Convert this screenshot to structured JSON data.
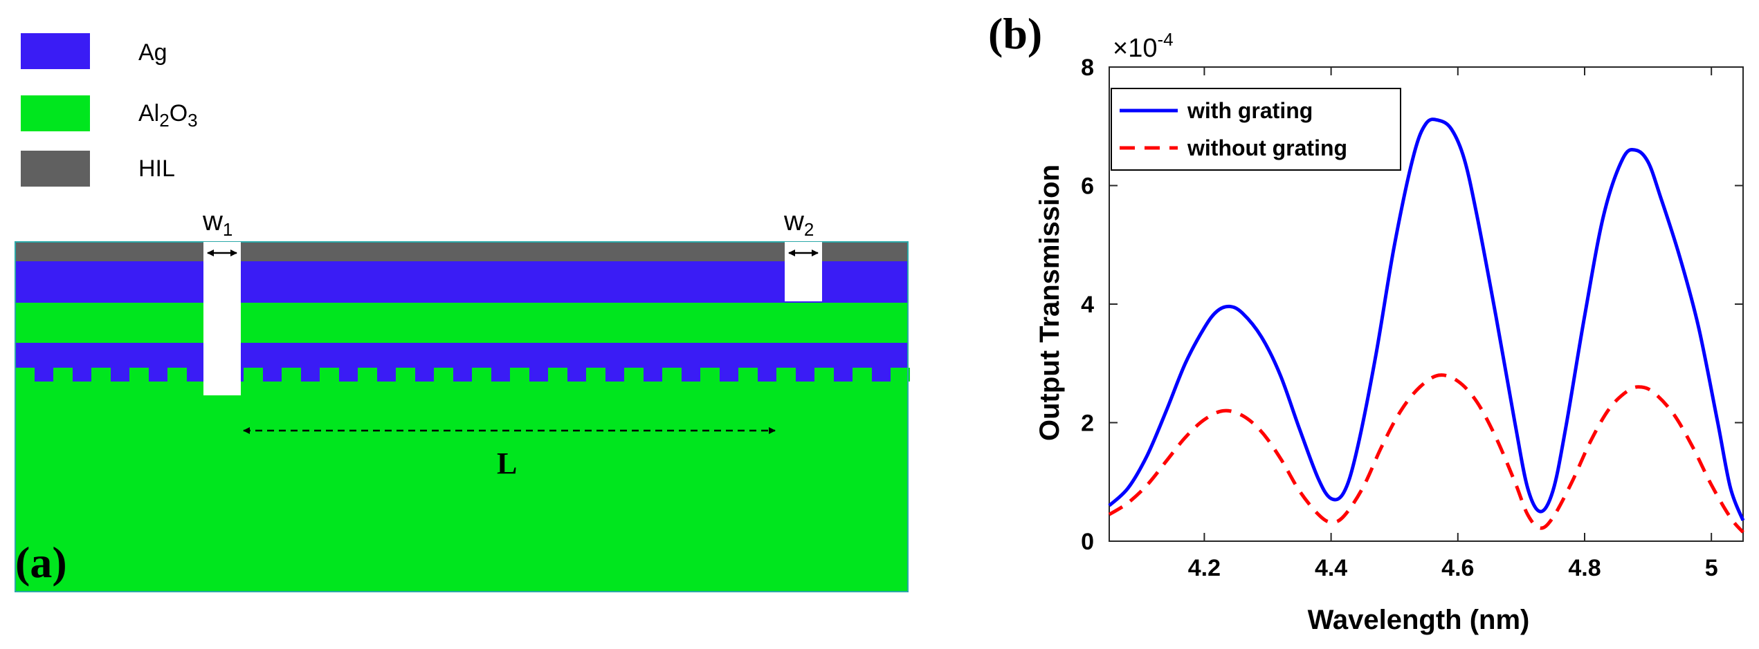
{
  "panel_a": {
    "label": "(a)",
    "legend": [
      {
        "name": "Ag",
        "color": "#3a1cf5"
      },
      {
        "name": "Al",
        "sub1": "2",
        "mid": "O",
        "sub2": "3",
        "color": "#00e61e"
      },
      {
        "name": "HIL",
        "color": "#606060"
      }
    ],
    "w1_main": "w",
    "w1_sub": "1",
    "w2_main": "w",
    "w2_sub": "2",
    "L_label": "L"
  },
  "panel_b": {
    "label": "(b)"
  },
  "chart_data": {
    "type": "line",
    "title": "",
    "xlabel": "Wavelength (nm)",
    "ylabel": "Output Transmission",
    "scale_base": "×10",
    "scale_exp": "-4",
    "xlim": [
      4.05,
      5.05
    ],
    "ylim": [
      0,
      8
    ],
    "xticks": [
      4.2,
      4.4,
      4.6,
      4.8,
      5
    ],
    "xtick_labels": [
      "4.2",
      "4.4",
      "4.6",
      "4.8",
      "5"
    ],
    "yticks": [
      0,
      2,
      4,
      6,
      8
    ],
    "ytick_labels": [
      "0",
      "2",
      "4",
      "6",
      "8"
    ],
    "legend_position": "top-left",
    "series": [
      {
        "name": "with grating",
        "color": "#0000ff",
        "dash": "solid",
        "points": [
          [
            4.05,
            0.6
          ],
          [
            4.08,
            0.9
          ],
          [
            4.11,
            1.45
          ],
          [
            4.14,
            2.2
          ],
          [
            4.17,
            3.0
          ],
          [
            4.2,
            3.6
          ],
          [
            4.22,
            3.88
          ],
          [
            4.24,
            3.96
          ],
          [
            4.26,
            3.85
          ],
          [
            4.29,
            3.45
          ],
          [
            4.32,
            2.8
          ],
          [
            4.35,
            1.9
          ],
          [
            4.38,
            1.05
          ],
          [
            4.4,
            0.72
          ],
          [
            4.42,
            0.82
          ],
          [
            4.44,
            1.5
          ],
          [
            4.47,
            3.1
          ],
          [
            4.5,
            5.0
          ],
          [
            4.53,
            6.5
          ],
          [
            4.55,
            7.05
          ],
          [
            4.57,
            7.1
          ],
          [
            4.59,
            6.95
          ],
          [
            4.61,
            6.45
          ],
          [
            4.63,
            5.5
          ],
          [
            4.66,
            3.8
          ],
          [
            4.69,
            2.0
          ],
          [
            4.71,
            0.9
          ],
          [
            4.73,
            0.5
          ],
          [
            4.75,
            0.85
          ],
          [
            4.77,
            1.9
          ],
          [
            4.8,
            3.8
          ],
          [
            4.83,
            5.5
          ],
          [
            4.86,
            6.45
          ],
          [
            4.88,
            6.6
          ],
          [
            4.9,
            6.4
          ],
          [
            4.92,
            5.8
          ],
          [
            4.95,
            4.8
          ],
          [
            4.98,
            3.6
          ],
          [
            5.01,
            2.0
          ],
          [
            5.03,
            0.9
          ],
          [
            5.05,
            0.35
          ]
        ]
      },
      {
        "name": "without grating",
        "color": "#ff0000",
        "dash": "dashed",
        "points": [
          [
            4.05,
            0.45
          ],
          [
            4.08,
            0.65
          ],
          [
            4.11,
            0.95
          ],
          [
            4.14,
            1.35
          ],
          [
            4.17,
            1.75
          ],
          [
            4.2,
            2.05
          ],
          [
            4.23,
            2.2
          ],
          [
            4.26,
            2.12
          ],
          [
            4.29,
            1.85
          ],
          [
            4.32,
            1.4
          ],
          [
            4.35,
            0.85
          ],
          [
            4.38,
            0.45
          ],
          [
            4.4,
            0.32
          ],
          [
            4.42,
            0.42
          ],
          [
            4.45,
            0.9
          ],
          [
            4.48,
            1.6
          ],
          [
            4.51,
            2.2
          ],
          [
            4.54,
            2.6
          ],
          [
            4.57,
            2.8
          ],
          [
            4.6,
            2.7
          ],
          [
            4.63,
            2.35
          ],
          [
            4.66,
            1.75
          ],
          [
            4.69,
            1.0
          ],
          [
            4.71,
            0.45
          ],
          [
            4.73,
            0.22
          ],
          [
            4.75,
            0.4
          ],
          [
            4.78,
            1.0
          ],
          [
            4.81,
            1.7
          ],
          [
            4.84,
            2.25
          ],
          [
            4.87,
            2.55
          ],
          [
            4.89,
            2.6
          ],
          [
            4.91,
            2.5
          ],
          [
            4.94,
            2.15
          ],
          [
            4.97,
            1.6
          ],
          [
            5.0,
            0.95
          ],
          [
            5.03,
            0.4
          ],
          [
            5.05,
            0.15
          ]
        ]
      }
    ]
  }
}
